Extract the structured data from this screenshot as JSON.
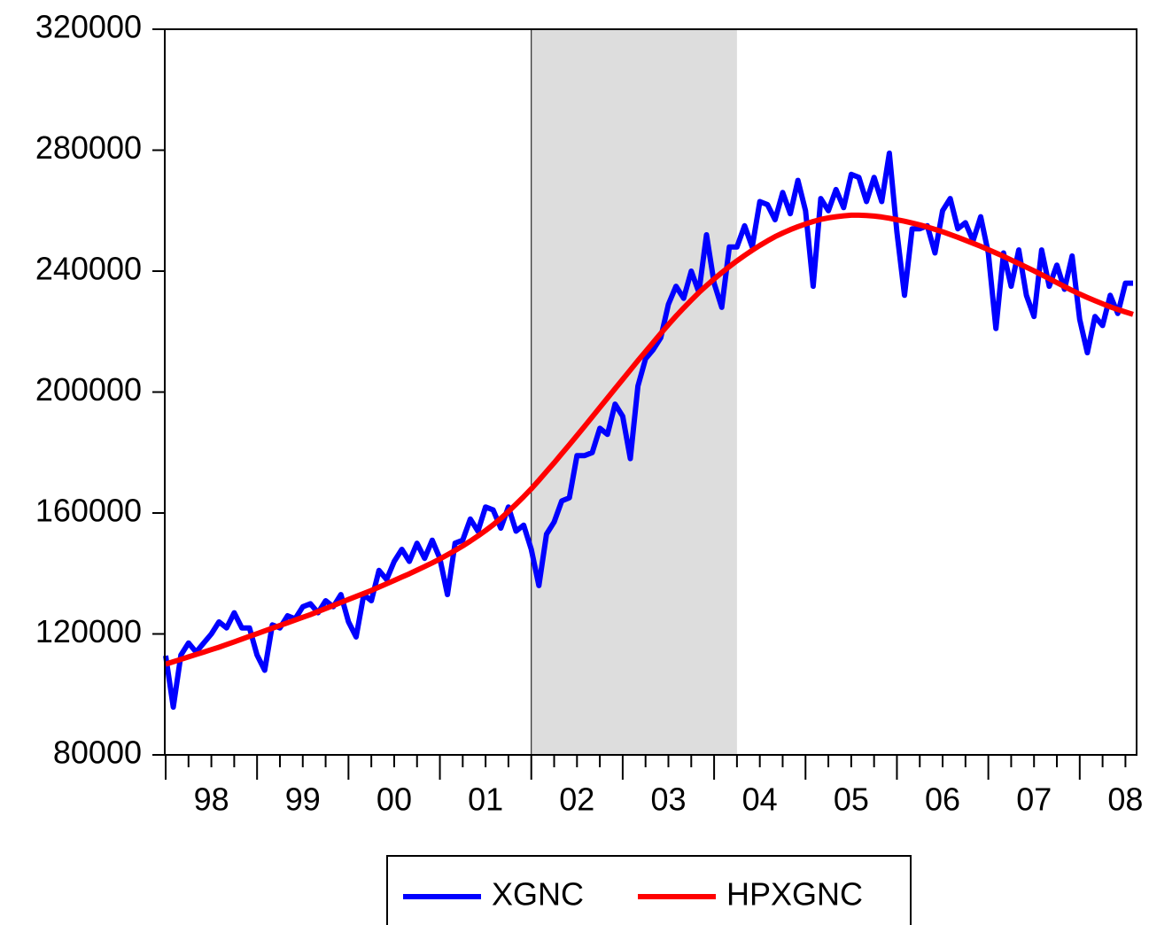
{
  "chart_data": {
    "type": "line",
    "categories": [
      "98",
      null,
      null,
      null,
      null,
      null,
      null,
      null,
      null,
      null,
      null,
      null,
      "99",
      null,
      null,
      null,
      null,
      null,
      null,
      null,
      null,
      null,
      null,
      null,
      "00",
      null,
      null,
      null,
      null,
      null,
      null,
      null,
      null,
      null,
      null,
      null,
      "01",
      null,
      null,
      null,
      null,
      null,
      null,
      null,
      null,
      null,
      null,
      null,
      "02",
      null,
      null,
      null,
      null,
      null,
      null,
      null,
      null,
      null,
      null,
      null,
      "03",
      null,
      null,
      null,
      null,
      null,
      null,
      null,
      null,
      null,
      null,
      null,
      "04",
      null,
      null,
      null,
      null,
      null,
      null,
      null,
      null,
      null,
      null,
      null,
      "05",
      null,
      null,
      null,
      null,
      null,
      null,
      null,
      null,
      null,
      null,
      null,
      "06",
      null,
      null,
      null,
      null,
      null,
      null,
      null,
      null,
      null,
      null,
      null,
      "07",
      null,
      null,
      null,
      null,
      null,
      null,
      null,
      null,
      null,
      null,
      null,
      "08",
      null,
      null,
      null,
      null,
      null,
      null,
      null
    ],
    "series": [
      {
        "name": "XGNC",
        "color": "#0000ff",
        "values": [
          112800,
          95800,
          113000,
          117000,
          114000,
          117000,
          120000,
          124000,
          122000,
          127000,
          122000,
          122000,
          113000,
          108000,
          123000,
          122000,
          126000,
          125000,
          129000,
          130000,
          127000,
          131000,
          129000,
          133000,
          124000,
          119000,
          133000,
          131000,
          141000,
          138000,
          144000,
          148000,
          144000,
          150000,
          145000,
          151000,
          145000,
          133000,
          150000,
          151000,
          158000,
          154000,
          162000,
          161000,
          155000,
          162000,
          154000,
          156000,
          148000,
          136000,
          153000,
          157000,
          164000,
          165000,
          179000,
          179000,
          180000,
          188000,
          186000,
          196000,
          192000,
          178000,
          202000,
          211000,
          214000,
          218000,
          229000,
          235000,
          231000,
          240000,
          233000,
          252000,
          236000,
          228000,
          248000,
          248000,
          255000,
          248000,
          263000,
          262000,
          257000,
          266000,
          259000,
          270000,
          260000,
          235000,
          264000,
          260000,
          267000,
          261000,
          272000,
          271000,
          263000,
          271000,
          263000,
          279000,
          253000,
          232000,
          254000,
          254000,
          255000,
          246000,
          260000,
          264000,
          254000,
          256000,
          250000,
          258000,
          246000,
          221000,
          246000,
          235000,
          247000,
          232000,
          225000,
          247000,
          235000,
          242000,
          234000,
          245000,
          224000,
          213000,
          225000,
          222000,
          232000,
          226000,
          236000,
          236000
        ]
      },
      {
        "name": "HPXGNC",
        "color": "#ff0000",
        "values": [
          110000,
          110800,
          111600,
          112400,
          113200,
          114000,
          114800,
          115600,
          116500,
          117400,
          118300,
          119200,
          120100,
          121000,
          121900,
          122800,
          123700,
          124600,
          125500,
          126400,
          127400,
          128400,
          129400,
          130400,
          131400,
          132400,
          133400,
          134400,
          135500,
          136600,
          137700,
          138800,
          139900,
          141100,
          142300,
          143500,
          144800,
          146200,
          147600,
          149100,
          150700,
          152400,
          154200,
          156100,
          158200,
          160500,
          162900,
          165400,
          168000,
          170800,
          173700,
          176600,
          179600,
          182600,
          185600,
          188700,
          191800,
          194900,
          198000,
          201100,
          204200,
          207300,
          210400,
          213400,
          216400,
          219400,
          222300,
          225100,
          227800,
          230400,
          232900,
          235200,
          237400,
          239500,
          241500,
          243400,
          245200,
          246900,
          248500,
          250000,
          251400,
          252600,
          253700,
          254700,
          255600,
          256400,
          257100,
          257600,
          258000,
          258300,
          258500,
          258500,
          258400,
          258200,
          257900,
          257500,
          257000,
          256500,
          255900,
          255300,
          254600,
          253800,
          253000,
          252100,
          251200,
          250200,
          249200,
          248200,
          247100,
          246000,
          244900,
          243700,
          242500,
          241300,
          240100,
          238800,
          237500,
          236200,
          234900,
          233600,
          232400,
          231300,
          230200,
          229200,
          228200,
          227300,
          226500,
          225700
        ]
      }
    ],
    "shade": [
      48,
      75
    ],
    "ylim": [
      80000,
      320000
    ],
    "yticks": [
      80000,
      120000,
      160000,
      200000,
      240000,
      280000,
      320000
    ],
    "legend": "bottom"
  }
}
